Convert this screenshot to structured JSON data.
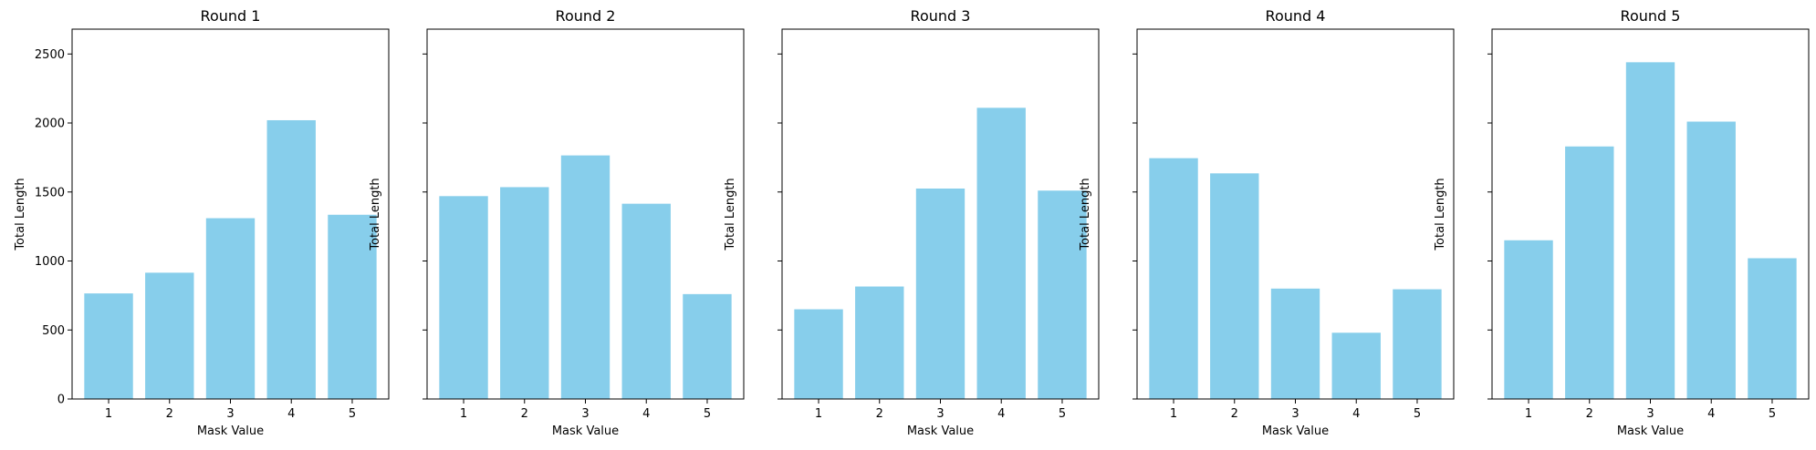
{
  "chart_data": [
    {
      "type": "bar",
      "title": "Round 1",
      "xlabel": "Mask Value",
      "ylabel": "Total Length",
      "categories": [
        "1",
        "2",
        "3",
        "4",
        "5"
      ],
      "values": [
        765,
        915,
        1310,
        2020,
        1335
      ],
      "ylim": [
        0,
        2680
      ],
      "yticks": [
        0,
        500,
        1000,
        1500,
        2000,
        2500
      ],
      "show_ytick_labels": true,
      "bar_color": "#87ceeb",
      "grid": false
    },
    {
      "type": "bar",
      "title": "Round 2",
      "xlabel": "Mask Value",
      "ylabel": "Total Length",
      "categories": [
        "1",
        "2",
        "3",
        "4",
        "5"
      ],
      "values": [
        1470,
        1535,
        1765,
        1415,
        760
      ],
      "ylim": [
        0,
        2680
      ],
      "yticks": [
        0,
        500,
        1000,
        1500,
        2000,
        2500
      ],
      "show_ytick_labels": false,
      "bar_color": "#87ceeb",
      "grid": false
    },
    {
      "type": "bar",
      "title": "Round 3",
      "xlabel": "Mask Value",
      "ylabel": "Total Length",
      "categories": [
        "1",
        "2",
        "3",
        "4",
        "5"
      ],
      "values": [
        650,
        815,
        1525,
        2110,
        1510
      ],
      "ylim": [
        0,
        2680
      ],
      "yticks": [
        0,
        500,
        1000,
        1500,
        2000,
        2500
      ],
      "show_ytick_labels": false,
      "bar_color": "#87ceeb",
      "grid": false
    },
    {
      "type": "bar",
      "title": "Round 4",
      "xlabel": "Mask Value",
      "ylabel": "Total Length",
      "categories": [
        "1",
        "2",
        "3",
        "4",
        "5"
      ],
      "values": [
        1745,
        1635,
        800,
        480,
        795
      ],
      "ylim": [
        0,
        2680
      ],
      "yticks": [
        0,
        500,
        1000,
        1500,
        2000,
        2500
      ],
      "show_ytick_labels": false,
      "bar_color": "#87ceeb",
      "grid": false
    },
    {
      "type": "bar",
      "title": "Round 5",
      "xlabel": "Mask Value",
      "ylabel": "Total Length",
      "categories": [
        "1",
        "2",
        "3",
        "4",
        "5"
      ],
      "values": [
        1150,
        1830,
        2440,
        2010,
        1020
      ],
      "ylim": [
        0,
        2680
      ],
      "yticks": [
        0,
        500,
        1000,
        1500,
        2000,
        2500
      ],
      "show_ytick_labels": false,
      "bar_color": "#87ceeb",
      "grid": false
    }
  ]
}
